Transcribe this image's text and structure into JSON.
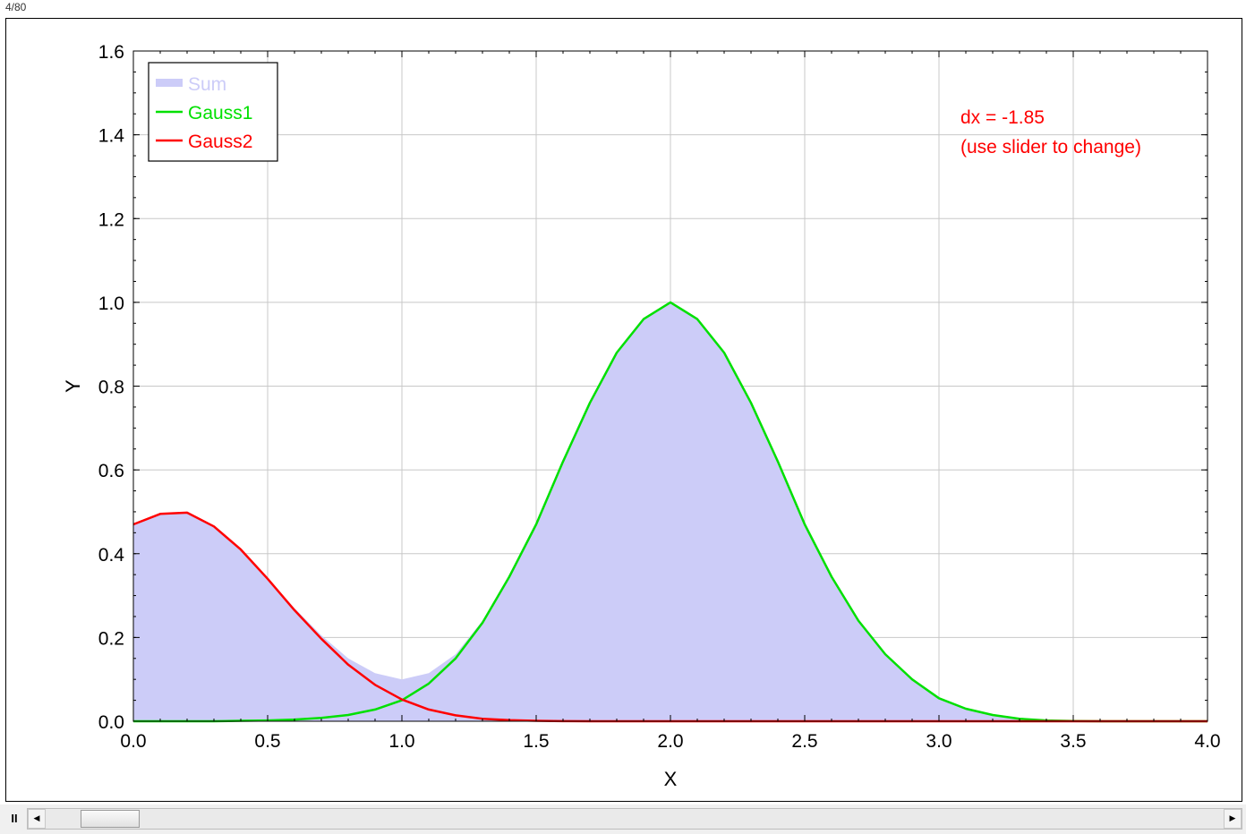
{
  "frame_counter": "4/80",
  "annotation": {
    "line1": "dx = -1.85",
    "line2": "(use slider to change)",
    "color": "#ff0000"
  },
  "controls": {
    "pause_label": "II",
    "scroll_left_icon": "◀",
    "scroll_right_icon": "▶",
    "slider_position_fraction": 0.03
  },
  "chart_data": {
    "type": "line",
    "xlabel": "X",
    "ylabel": "Y",
    "xlim": [
      0.0,
      4.0
    ],
    "ylim": [
      0.0,
      1.6
    ],
    "x_ticks": [
      "0.0",
      "0.5",
      "1.0",
      "1.5",
      "2.0",
      "2.5",
      "3.0",
      "3.5",
      "4.0"
    ],
    "y_ticks": [
      "0.0",
      "0.2",
      "0.4",
      "0.6",
      "0.8",
      "1.0",
      "1.2",
      "1.4",
      "1.6"
    ],
    "grid": true,
    "legend_position": "top-left",
    "x": [
      0.0,
      0.1,
      0.2,
      0.3,
      0.4,
      0.5,
      0.6,
      0.7,
      0.8,
      0.9,
      1.0,
      1.1,
      1.2,
      1.3,
      1.4,
      1.5,
      1.6,
      1.7,
      1.8,
      1.9,
      2.0,
      2.1,
      2.2,
      2.3,
      2.4,
      2.5,
      2.6,
      2.7,
      2.8,
      2.9,
      3.0,
      3.1,
      3.2,
      3.3,
      3.4,
      3.5,
      3.6,
      3.7,
      3.8,
      3.9,
      4.0
    ],
    "series": [
      {
        "name": "Sum",
        "style": "area",
        "color": "#ccccf8",
        "values": [
          0.47,
          0.495,
          0.498,
          0.465,
          0.41,
          0.34,
          0.27,
          0.205,
          0.15,
          0.115,
          0.1,
          0.115,
          0.16,
          0.24,
          0.345,
          0.47,
          0.62,
          0.76,
          0.88,
          0.96,
          1.0,
          0.96,
          0.88,
          0.76,
          0.62,
          0.47,
          0.345,
          0.24,
          0.16,
          0.1,
          0.055,
          0.03,
          0.015,
          0.006,
          0.002,
          0.0005,
          0.0,
          0.0,
          0.0,
          0.0,
          0.0
        ]
      },
      {
        "name": "Gauss1",
        "style": "line",
        "color": "#00e000",
        "values": [
          0.0,
          0.0,
          0.0,
          0.0,
          0.001,
          0.002,
          0.004,
          0.008,
          0.015,
          0.028,
          0.05,
          0.09,
          0.15,
          0.235,
          0.345,
          0.47,
          0.62,
          0.76,
          0.88,
          0.96,
          1.0,
          0.96,
          0.88,
          0.76,
          0.62,
          0.47,
          0.345,
          0.24,
          0.16,
          0.1,
          0.055,
          0.03,
          0.015,
          0.006,
          0.002,
          0.0005,
          0.0,
          0.0,
          0.0,
          0.0,
          0.0
        ]
      },
      {
        "name": "Gauss2",
        "style": "line",
        "color": "#ff0000",
        "values": [
          0.47,
          0.495,
          0.498,
          0.465,
          0.41,
          0.34,
          0.265,
          0.197,
          0.135,
          0.087,
          0.052,
          0.028,
          0.014,
          0.006,
          0.0025,
          0.001,
          0.0003,
          0.0,
          0.0,
          0.0,
          0.0,
          0.0,
          0.0,
          0.0,
          0.0,
          0.0,
          0.0,
          0.0,
          0.0,
          0.0,
          0.0,
          0.0,
          0.0,
          0.0,
          0.0,
          0.0,
          0.0,
          0.0,
          0.0,
          0.0,
          0.0
        ]
      }
    ]
  }
}
